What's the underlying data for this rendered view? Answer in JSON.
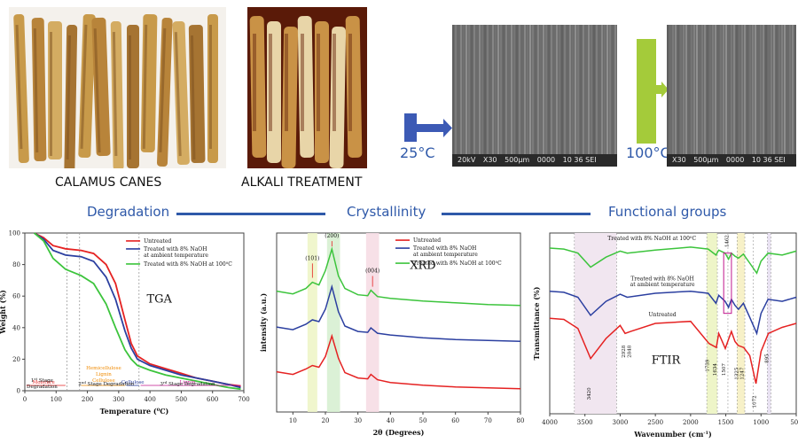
{
  "captions": {
    "canes": "CALAMUS CANES",
    "alkali": "ALKALI TREATMENT"
  },
  "temps": {
    "t1": "25°C",
    "t2": "100°C"
  },
  "sem": {
    "left": [
      "20kV",
      "X30",
      "500μm",
      "0000",
      "10 36 SEI"
    ],
    "right": [
      "X30",
      "500μm",
      "0000",
      "10 36 SEI"
    ]
  },
  "sections": {
    "degradation": "Degradation",
    "crystallinity": "Crystallinity",
    "functional": "Functional groups"
  },
  "legend": {
    "untreated": "Untreated",
    "ambient_1": "Treated with 8% NaOH",
    "ambient_2": "at ambient temperature",
    "hot": "Treated with 8% NaOH at 100",
    "hot_unit": "C"
  },
  "colors": {
    "untreated": "#e52222",
    "ambient": "#2b3fa0",
    "hot": "#3cc43c",
    "accent": "#2f59a9"
  },
  "chart_data": [
    {
      "type": "line",
      "name_label": "TGA",
      "xlabel": "Temperature (",
      "xlabel_unit": "C)",
      "ylabel": "Weight (%)",
      "xlim": [
        0,
        700
      ],
      "ylim": [
        0,
        100
      ],
      "xticks": [
        0,
        100,
        200,
        300,
        400,
        500,
        600,
        700
      ],
      "yticks": [
        0,
        20,
        40,
        60,
        80,
        100
      ],
      "stages": [
        "Moisture",
        "Hemicellulose",
        "Lignin",
        "Cellulose",
        "Cellulose",
        "Lignin"
      ],
      "stage_labels": {
        "s1": "1",
        "s1b": "st",
        "s1c": "Stage",
        "s1d": "Degradation",
        "s2": "2",
        "s2b": "nd",
        "s2c": "Stage Degradation",
        "s3": "3",
        "s3b": "rd",
        "s3c": "Stage Degradation"
      },
      "series": [
        {
          "key": "untreated",
          "x": [
            30,
            60,
            90,
            130,
            180,
            220,
            260,
            290,
            320,
            340,
            360,
            400,
            450,
            500,
            550,
            600,
            650,
            690
          ],
          "y": [
            100,
            97,
            92,
            90,
            89,
            87,
            80,
            68,
            45,
            30,
            22,
            17,
            14,
            11,
            8,
            6,
            4,
            3
          ]
        },
        {
          "key": "ambient",
          "x": [
            30,
            60,
            90,
            130,
            180,
            220,
            260,
            290,
            320,
            340,
            360,
            400,
            450,
            500,
            550,
            600,
            650,
            690
          ],
          "y": [
            100,
            96,
            89,
            86,
            85,
            82,
            72,
            58,
            38,
            27,
            20,
            16,
            13,
            10,
            8,
            6,
            4,
            2
          ]
        },
        {
          "key": "hot",
          "x": [
            30,
            60,
            90,
            130,
            180,
            220,
            260,
            290,
            320,
            340,
            360,
            400,
            450,
            500,
            550,
            600,
            650,
            690
          ],
          "y": [
            100,
            95,
            84,
            77,
            73,
            68,
            55,
            40,
            26,
            20,
            16,
            13,
            10,
            8,
            6,
            4,
            2,
            1
          ]
        }
      ]
    },
    {
      "type": "line",
      "name_label": "XRD",
      "xlabel": "2θ (Degrees)",
      "ylabel": "intensity (a.u.)",
      "xlim": [
        5,
        80
      ],
      "xticks": [
        10,
        20,
        30,
        40,
        50,
        60,
        70,
        80
      ],
      "peaks": [
        "(101)",
        "(200)",
        "(004)"
      ],
      "series": [
        {
          "key": "untreated",
          "x": [
            5,
            10,
            14,
            16,
            18,
            20,
            22,
            24,
            26,
            30,
            33,
            34,
            36,
            40,
            50,
            60,
            70,
            80
          ],
          "y": [
            45,
            42,
            48,
            52,
            50,
            62,
            85,
            60,
            44,
            38,
            37,
            42,
            36,
            33,
            30,
            28,
            27,
            26
          ]
        },
        {
          "key": "ambient",
          "x": [
            5,
            10,
            14,
            16,
            18,
            20,
            22,
            24,
            26,
            30,
            33,
            34,
            36,
            40,
            50,
            60,
            70,
            80
          ],
          "y": [
            95,
            92,
            98,
            103,
            101,
            115,
            140,
            112,
            96,
            90,
            89,
            94,
            88,
            86,
            83,
            81,
            80,
            79
          ]
        },
        {
          "key": "hot",
          "x": [
            5,
            10,
            14,
            16,
            18,
            20,
            22,
            24,
            26,
            30,
            33,
            34,
            36,
            40,
            50,
            60,
            70,
            80
          ],
          "y": [
            135,
            132,
            138,
            145,
            142,
            158,
            182,
            152,
            138,
            131,
            130,
            136,
            129,
            127,
            124,
            122,
            120,
            119
          ]
        }
      ]
    },
    {
      "type": "line",
      "name_label": "FTIR",
      "xlabel": "Wavenumber (cm",
      "xlabel_unit": ")",
      "ylabel": "Transmittance (%)",
      "xlim": [
        4000,
        500
      ],
      "xticks": [
        4000,
        3500,
        3000,
        2500,
        2000,
        1500,
        1000,
        500
      ],
      "series_labels": {
        "hot": "Treated with 8% NaOH at 100",
        "ambient_1": "Treated with 8% NaOH",
        "ambient_2": "at ambient temperature",
        "untreated": "Untreated"
      },
      "peaks": [
        "3420",
        "2928",
        "2848",
        "1739",
        "1634",
        "1507",
        "1325",
        "1247",
        "1072",
        "895",
        "1462"
      ],
      "series": [
        {
          "key": "hot",
          "x": [
            4000,
            3800,
            3600,
            3420,
            3200,
            3000,
            2900,
            2500,
            2000,
            1750,
            1640,
            1600,
            1510,
            1460,
            1420,
            1370,
            1320,
            1250,
            1160,
            1060,
            1000,
            900,
            700,
            500
          ],
          "y": [
            165,
            164,
            160,
            146,
            156,
            162,
            160,
            163,
            166,
            164,
            158,
            163,
            160,
            154,
            160,
            157,
            155,
            159,
            150,
            140,
            152,
            160,
            158,
            162
          ]
        },
        {
          "key": "ambient",
          "x": [
            4000,
            3800,
            3600,
            3420,
            3200,
            3000,
            2900,
            2500,
            2000,
            1750,
            1640,
            1600,
            1510,
            1460,
            1420,
            1370,
            1320,
            1250,
            1160,
            1060,
            1000,
            900,
            700,
            500
          ],
          "y": [
            122,
            121,
            116,
            98,
            112,
            119,
            116,
            120,
            122,
            120,
            110,
            118,
            112,
            106,
            114,
            108,
            104,
            110,
            96,
            80,
            100,
            114,
            112,
            116
          ]
        },
        {
          "key": "untreated",
          "x": [
            4000,
            3800,
            3600,
            3420,
            3200,
            3000,
            2930,
            2850,
            2500,
            2000,
            1739,
            1634,
            1600,
            1507,
            1462,
            1420,
            1370,
            1325,
            1247,
            1160,
            1072,
            1000,
            895,
            700,
            500
          ],
          "y": [
            95,
            94,
            85,
            55,
            75,
            88,
            80,
            82,
            90,
            92,
            70,
            66,
            80,
            65,
            74,
            82,
            72,
            68,
            66,
            58,
            30,
            62,
            80,
            86,
            90
          ]
        }
      ]
    }
  ]
}
